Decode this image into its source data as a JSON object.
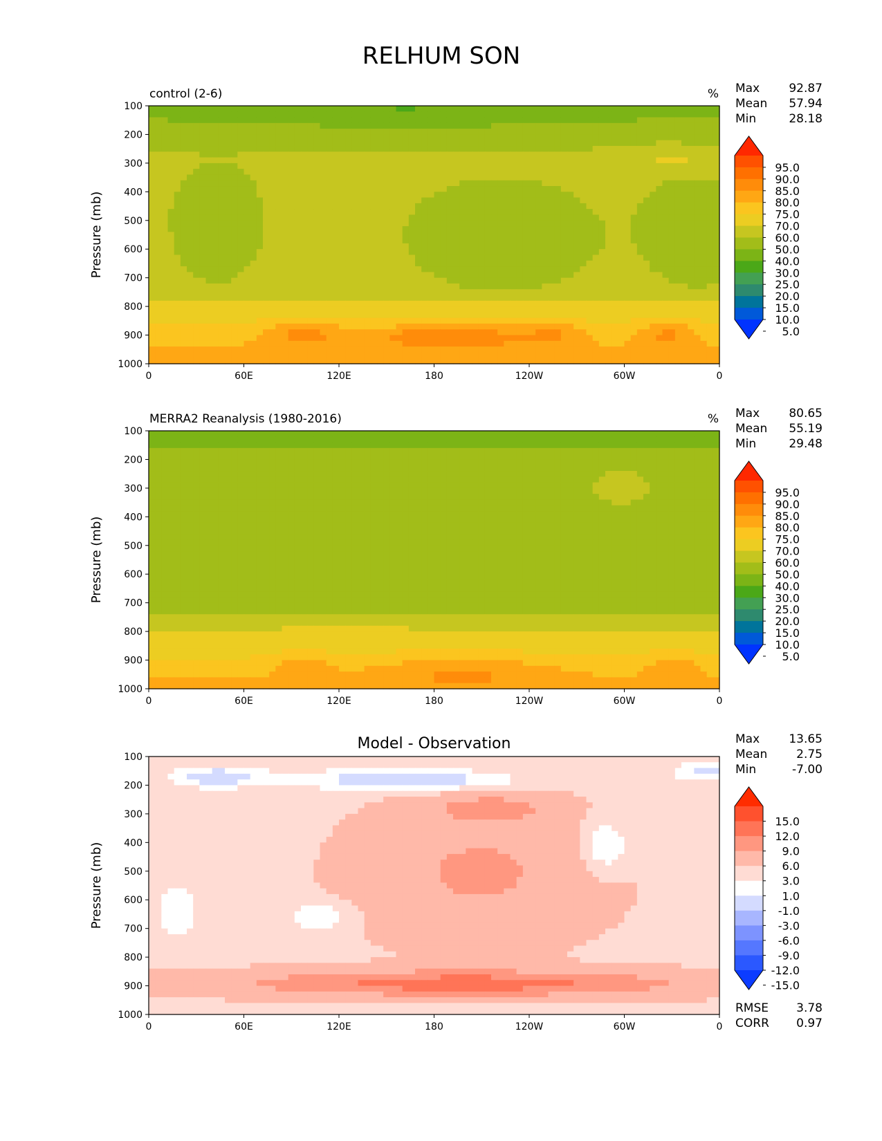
{
  "figure_title": "RELHUM SON",
  "colors": {
    "abs_levels": [
      "#0033ff",
      "#0059d9",
      "#00749b",
      "#2e8a6e",
      "#43a053",
      "#4ba818",
      "#7cb416",
      "#a2bd19",
      "#c6c620",
      "#eccd22",
      "#fbc51f",
      "#ffa714",
      "#ff8c0a",
      "#ff7000",
      "#ff5100",
      "#ff2800"
    ],
    "diff_levels": [
      "#0c3cff",
      "#2b58ff",
      "#5577ff",
      "#7d93ff",
      "#a8b6ff",
      "#d4dbff",
      "#ffffff",
      "#ffdcd4",
      "#ffb9a9",
      "#ff9780",
      "#ff7457",
      "#ff512e",
      "#ff2c00"
    ]
  },
  "chart_data": [
    {
      "type": "heatmap",
      "id": "control",
      "left_title": "control (2-6)",
      "units": "%",
      "ylabel": "Pressure (mb)",
      "xlabel": "",
      "x_ticks": [
        "0",
        "60E",
        "120E",
        "180",
        "120W",
        "60W",
        "0"
      ],
      "y_ticks": [
        "100",
        "200",
        "300",
        "400",
        "500",
        "600",
        "700",
        "800",
        "900",
        "1000"
      ],
      "xlim": [
        0,
        360
      ],
      "ylim": [
        1000,
        100
      ],
      "stats": {
        "labels": [
          "Max",
          "Mean",
          "Min"
        ],
        "values": [
          "92.87",
          "57.94",
          "28.18"
        ]
      },
      "colorbar_ticks": [
        "95.0",
        "90.0",
        "85.0",
        "80.0",
        "75.0",
        "70.0",
        "60.0",
        "50.0",
        "40.0",
        "30.0",
        "25.0",
        "20.0",
        "15.0",
        "10.0",
        "5.0"
      ]
    },
    {
      "type": "heatmap",
      "id": "merra2",
      "left_title": "MERRA2 Reanalysis (1980-2016)",
      "units": "%",
      "ylabel": "Pressure (mb)",
      "xlabel": "",
      "x_ticks": [
        "0",
        "60E",
        "120E",
        "180",
        "120W",
        "60W",
        "0"
      ],
      "y_ticks": [
        "100",
        "200",
        "300",
        "400",
        "500",
        "600",
        "700",
        "800",
        "900",
        "1000"
      ],
      "xlim": [
        0,
        360
      ],
      "ylim": [
        1000,
        100
      ],
      "stats": {
        "labels": [
          "Max",
          "Mean",
          "Min"
        ],
        "values": [
          "80.65",
          "55.19",
          "29.48"
        ]
      },
      "colorbar_ticks": [
        "95.0",
        "90.0",
        "85.0",
        "80.0",
        "75.0",
        "70.0",
        "60.0",
        "50.0",
        "40.0",
        "30.0",
        "25.0",
        "20.0",
        "15.0",
        "10.0",
        "5.0"
      ]
    },
    {
      "type": "heatmap",
      "id": "diff",
      "center_title": "Model - Observation",
      "ylabel": "Pressure (mb)",
      "xlabel": "",
      "x_ticks": [
        "0",
        "60E",
        "120E",
        "180",
        "120W",
        "60W",
        "0"
      ],
      "y_ticks": [
        "100",
        "200",
        "300",
        "400",
        "500",
        "600",
        "700",
        "800",
        "900",
        "1000"
      ],
      "xlim": [
        0,
        360
      ],
      "ylim": [
        1000,
        100
      ],
      "stats": {
        "labels": [
          "Max",
          "Mean",
          "Min"
        ],
        "values": [
          "13.65",
          "2.75",
          "-7.00"
        ]
      },
      "colorbar_ticks": [
        "15.0",
        "12.0",
        "9.0",
        "6.0",
        "3.0",
        "1.0",
        "-1.0",
        "-3.0",
        "-6.0",
        "-9.0",
        "-12.0",
        "-15.0"
      ],
      "metrics": {
        "labels": [
          "RMSE",
          "CORR"
        ],
        "values": [
          "3.78",
          "0.97"
        ]
      }
    }
  ]
}
